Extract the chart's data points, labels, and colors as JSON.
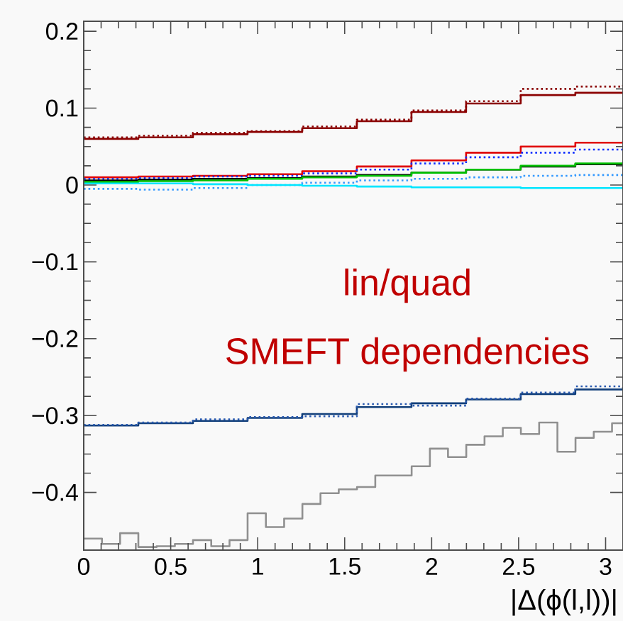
{
  "chart_data": {
    "type": "step",
    "xlabel": "|Δ(ϕ(l,l))|",
    "annotations": [
      "lin/quad",
      "SMEFT dependencies"
    ],
    "xlim": [
      0,
      3.1
    ],
    "ylim": [
      -0.475,
      0.213
    ],
    "xticks": [
      0,
      0.5,
      1,
      1.5,
      2,
      2.5,
      3
    ],
    "yticks": [
      {
        "value": -0.4,
        "label": "−0.4"
      },
      {
        "value": -0.3,
        "label": "−0.3"
      },
      {
        "value": -0.2,
        "label": "−0.2"
      },
      {
        "value": -0.1,
        "label": "−0.1"
      },
      0,
      0.1,
      0.2
    ],
    "x": [
      0,
      0.314,
      0.628,
      0.942,
      1.256,
      1.57,
      1.884,
      2.198,
      2.512,
      2.826,
      3.1
    ],
    "series": [
      {
        "color": "#8b0000",
        "line_style": "solid",
        "values": [
          0.06,
          0.062,
          0.066,
          0.069,
          0.074,
          0.083,
          0.095,
          0.106,
          0.117,
          0.12,
          0.12
        ]
      },
      {
        "color": "#8b0000",
        "line_style": "dotted",
        "values": [
          0.062,
          0.064,
          0.068,
          0.07,
          0.076,
          0.085,
          0.097,
          0.109,
          0.125,
          0.128,
          0.13
        ]
      },
      {
        "color": "#e00000",
        "line_style": "solid",
        "values": [
          0.01,
          0.011,
          0.012,
          0.014,
          0.018,
          0.024,
          0.032,
          0.042,
          0.05,
          0.055,
          0.057
        ]
      },
      {
        "color": "#1030ff",
        "line_style": "dotted",
        "values": [
          0.008,
          0.009,
          0.011,
          0.012,
          0.015,
          0.02,
          0.028,
          0.036,
          0.042,
          0.046,
          0.047
        ]
      },
      {
        "color": "#000000",
        "line_style": "solid",
        "values": [
          0.006,
          0.007,
          0.008,
          0.009,
          0.011,
          0.013,
          0.016,
          0.02,
          0.024,
          0.027,
          0.028
        ]
      },
      {
        "color": "#00c000",
        "line_style": "solid",
        "values": [
          0.004,
          0.005,
          0.006,
          0.008,
          0.01,
          0.012,
          0.016,
          0.02,
          0.025,
          0.028,
          0.03
        ]
      },
      {
        "color": "#3399ff",
        "line_style": "dotted",
        "values": [
          -0.005,
          -0.006,
          -0.004,
          0.0,
          0.003,
          0.006,
          0.008,
          0.01,
          0.012,
          0.013,
          0.014
        ]
      },
      {
        "color": "#00e5ff",
        "line_style": "solid",
        "values": [
          0.002,
          0.002,
          0.001,
          0.0,
          -0.001,
          -0.002,
          -0.003,
          -0.003,
          -0.004,
          -0.004,
          -0.004
        ]
      },
      {
        "color": "#123f7a",
        "line_style": "solid",
        "values": [
          -0.313,
          -0.31,
          -0.307,
          -0.303,
          -0.298,
          -0.289,
          -0.284,
          -0.279,
          -0.272,
          -0.266,
          -0.263
        ]
      },
      {
        "color": "#2a5ab0",
        "line_style": "dotted",
        "values": [
          -0.312,
          -0.309,
          -0.305,
          -0.302,
          -0.301,
          -0.285,
          -0.287,
          -0.278,
          -0.27,
          -0.262,
          -0.262
        ]
      },
      {
        "color": "#909090",
        "line_style": "solid",
        "x": [
          0,
          0.105,
          0.209,
          0.314,
          0.419,
          0.524,
          0.628,
          0.733,
          0.838,
          0.942,
          1.047,
          1.152,
          1.257,
          1.361,
          1.466,
          1.571,
          1.676,
          1.78,
          1.885,
          1.99,
          2.094,
          2.199,
          2.304,
          2.409,
          2.513,
          2.618,
          2.723,
          2.827,
          2.932,
          3.037,
          3.1
        ],
        "values": [
          -0.46,
          -0.467,
          -0.453,
          -0.471,
          -0.47,
          -0.467,
          -0.462,
          -0.47,
          -0.462,
          -0.427,
          -0.445,
          -0.434,
          -0.415,
          -0.401,
          -0.396,
          -0.393,
          -0.378,
          -0.378,
          -0.366,
          -0.343,
          -0.354,
          -0.338,
          -0.327,
          -0.316,
          -0.324,
          -0.309,
          -0.347,
          -0.329,
          -0.321,
          -0.31,
          -0.31
        ]
      }
    ]
  }
}
